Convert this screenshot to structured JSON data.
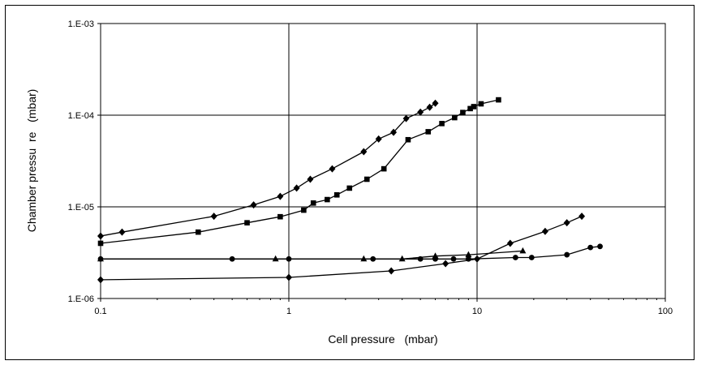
{
  "chart_data": {
    "type": "line",
    "x_scale": "log",
    "y_scale": "log",
    "xlim": [
      0.1,
      100
    ],
    "ylim": [
      1e-06,
      0.001
    ],
    "grid": true,
    "xlabel": "Cell pressure   (mbar)",
    "ylabel": "Chamber pressu  re   (mbar)",
    "x_ticks": [
      {
        "value": 0.1,
        "label": "0.1"
      },
      {
        "value": 1,
        "label": "1"
      },
      {
        "value": 10,
        "label": "10"
      },
      {
        "value": 100,
        "label": "100"
      }
    ],
    "y_ticks": [
      {
        "value": 1e-06,
        "label": "1.E-06"
      },
      {
        "value": 1e-05,
        "label": "1.E-05"
      },
      {
        "value": 0.0001,
        "label": "1.E-04"
      },
      {
        "value": 0.001,
        "label": "1.E-03"
      }
    ],
    "series": [
      {
        "marker": "diamond",
        "x": [
          0.1,
          0.13,
          0.4,
          0.65,
          0.9,
          1.1,
          1.3,
          1.7,
          2.5,
          3.0,
          3.6,
          4.2,
          5.0,
          5.6,
          6.0
        ],
        "y": [
          4.8e-06,
          5.3e-06,
          7.9e-06,
          1.05e-05,
          1.3e-05,
          1.6e-05,
          2e-05,
          2.6e-05,
          4e-05,
          5.5e-05,
          6.5e-05,
          9.2e-05,
          0.000108,
          0.000122,
          0.000135
        ]
      },
      {
        "marker": "square",
        "x": [
          0.1,
          0.33,
          0.6,
          0.9,
          1.2,
          1.35,
          1.6,
          1.8,
          2.1,
          2.6,
          3.2,
          4.3,
          5.5,
          6.5,
          7.6,
          8.4,
          9.2,
          9.6,
          10.5,
          13.0
        ],
        "y": [
          4e-06,
          5.3e-06,
          6.7e-06,
          7.8e-06,
          9.2e-06,
          1.1e-05,
          1.2e-05,
          1.35e-05,
          1.6e-05,
          2e-05,
          2.6e-05,
          5.4e-05,
          6.6e-05,
          8.1e-05,
          9.4e-05,
          0.000107,
          0.000118,
          0.000124,
          0.000133,
          0.000147
        ]
      },
      {
        "marker": "circle",
        "x": [
          0.1,
          0.5,
          1.0,
          2.8,
          5.0,
          6.0,
          7.5,
          9.0,
          16.0,
          19.5,
          30.0,
          40.0,
          45.0
        ],
        "y": [
          2.7e-06,
          2.7e-06,
          2.7e-06,
          2.7e-06,
          2.7e-06,
          2.7e-06,
          2.7e-06,
          2.7e-06,
          2.8e-06,
          2.8e-06,
          3e-06,
          3.6e-06,
          3.7e-06
        ]
      },
      {
        "marker": "triangle",
        "x": [
          0.1,
          0.85,
          2.5,
          4.0,
          6.0,
          9.0,
          17.5
        ],
        "y": [
          2.7e-06,
          2.7e-06,
          2.7e-06,
          2.7e-06,
          2.9e-06,
          3e-06,
          3.3e-06
        ]
      },
      {
        "marker": "diamond",
        "x": [
          0.1,
          1.0,
          3.5,
          6.8,
          10.0,
          15.0,
          23.0,
          30.0,
          36.0
        ],
        "y": [
          1.6e-06,
          1.7e-06,
          2e-06,
          2.4e-06,
          2.7e-06,
          4e-06,
          5.4e-06,
          6.7e-06,
          7.9e-06
        ]
      }
    ]
  }
}
